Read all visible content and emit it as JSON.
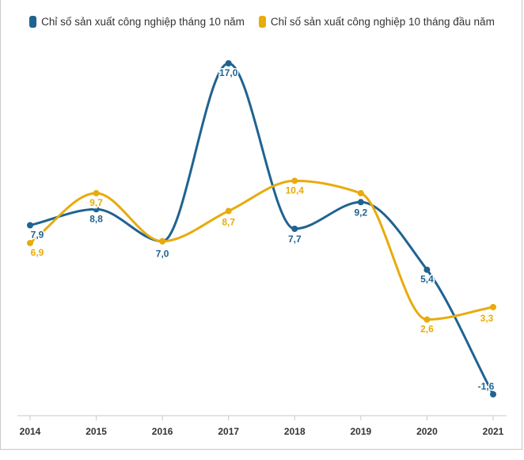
{
  "chart_data": {
    "type": "line",
    "categories": [
      "2014",
      "2015",
      "2016",
      "2017",
      "2018",
      "2019",
      "2020",
      "2021"
    ],
    "series": [
      {
        "name": "Chỉ số sản xuất công nghiệp tháng 10 năm",
        "color": "#1f6391",
        "values": [
          7.9,
          8.8,
          7.0,
          17.0,
          7.7,
          9.2,
          5.4,
          -1.6
        ],
        "labels": [
          "7,9",
          "8,8",
          "7,0",
          "17,0",
          "7,7",
          "9,2",
          "5,4",
          "-1,6"
        ]
      },
      {
        "name": "Chỉ số sản xuất công nghiệp 10 tháng đầu năm",
        "color": "#e8ab0c",
        "values": [
          6.9,
          9.7,
          7.0,
          8.7,
          10.4,
          9.7,
          2.6,
          3.3
        ],
        "labels": [
          "6,9",
          "9,7",
          "",
          "8,7",
          "10,4",
          "",
          "2,6",
          "3,3"
        ]
      }
    ],
    "legend_position": "top-center",
    "grid": false
  }
}
